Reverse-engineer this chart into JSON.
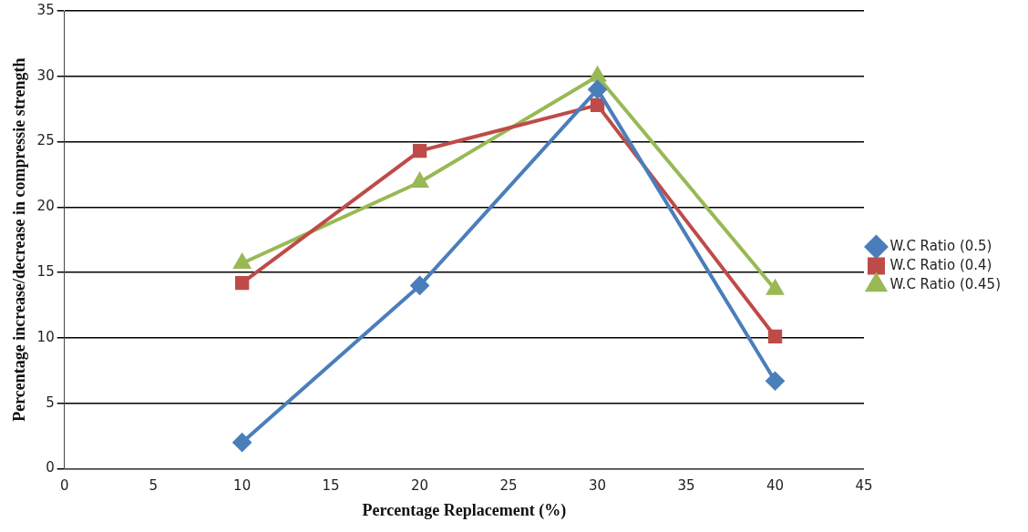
{
  "chart_data": {
    "type": "line",
    "xlabel": "Percentage Replacement (%)",
    "ylabel": "Percentage increase/decrease in compressie strength",
    "x": [
      10,
      20,
      30,
      40
    ],
    "series": [
      {
        "name": "W.C Ratio (0.5)",
        "color": "#4a7ebb",
        "marker": "diamond",
        "values": [
          2,
          14,
          29,
          6.7
        ]
      },
      {
        "name": "W.C Ratio (0.4)",
        "color": "#be4b48",
        "marker": "square",
        "values": [
          14.2,
          24.3,
          27.8,
          10.1
        ]
      },
      {
        "name": "W.C Ratio (0.45)",
        "color": "#98b954",
        "marker": "triangle",
        "values": [
          15.7,
          21.9,
          30,
          13.7
        ]
      }
    ],
    "xlim": [
      0,
      45
    ],
    "xticks": [
      0,
      5,
      10,
      15,
      20,
      25,
      30,
      35,
      40,
      45
    ],
    "ylim": [
      0,
      35
    ],
    "yticks": [
      0,
      5,
      10,
      15,
      20,
      25,
      30,
      35
    ],
    "grid": "y",
    "legend": "right",
    "line_style": "solid"
  }
}
